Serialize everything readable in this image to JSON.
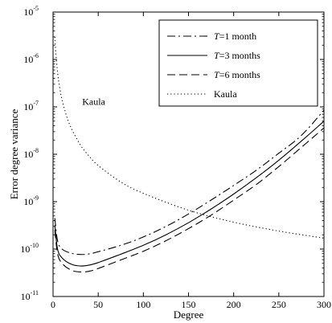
{
  "chart_data": {
    "type": "line",
    "xlabel": "Degree",
    "ylabel": "Error degree variance",
    "xlim": [
      0,
      300
    ],
    "ylim_exponent": [
      -11,
      -5
    ],
    "y_scale": "log",
    "x_ticks": [
      {
        "value": 0,
        "label": "0"
      },
      {
        "value": 50,
        "label": "50"
      },
      {
        "value": 100,
        "label": "100"
      },
      {
        "value": 150,
        "label": "150"
      },
      {
        "value": 200,
        "label": "200"
      },
      {
        "value": 250,
        "label": "250"
      },
      {
        "value": 300,
        "label": "300"
      }
    ],
    "y_ticks": [
      {
        "exp": -11,
        "base": "10",
        "sup": "-11"
      },
      {
        "exp": -10,
        "base": "10",
        "sup": "-10"
      },
      {
        "exp": -9,
        "base": "10",
        "sup": "-9"
      },
      {
        "exp": -8,
        "base": "10",
        "sup": "-8"
      },
      {
        "exp": -7,
        "base": "10",
        "sup": "-7"
      },
      {
        "exp": -6,
        "base": "10",
        "sup": "-6"
      },
      {
        "exp": -5,
        "base": "10",
        "sup": "-5"
      }
    ],
    "grid": false,
    "legend_position": "top-right",
    "annotations": [
      {
        "text": "Kaula",
        "x": 45,
        "y": 1.1e-07
      }
    ],
    "series": [
      {
        "id": "t1",
        "legend_var": "T",
        "legend_rest": "=1 month",
        "dash": "dashdot",
        "x": [
          2,
          5,
          10,
          20,
          30,
          40,
          50,
          75,
          100,
          125,
          150,
          175,
          200,
          225,
          250,
          275,
          300
        ],
        "y": [
          4.5e-10,
          1.5e-10,
          1e-10,
          8.2e-11,
          7.7e-11,
          7.9e-11,
          8.8e-11,
          1.2e-10,
          1.8e-10,
          3e-10,
          5.5e-10,
          1.08e-09,
          2.2e-09,
          4.6e-09,
          1.05e-08,
          2.5e-08,
          8.5e-08
        ]
      },
      {
        "id": "t3",
        "legend_var": "T",
        "legend_rest": "=3 months",
        "dash": "solid",
        "x": [
          2,
          5,
          10,
          20,
          30,
          40,
          50,
          75,
          100,
          125,
          150,
          175,
          200,
          225,
          250,
          275,
          300
        ],
        "y": [
          3.2e-10,
          1e-10,
          6.5e-11,
          4.8e-11,
          4.4e-11,
          4.6e-11,
          5.2e-11,
          7.8e-11,
          1.2e-10,
          2e-10,
          3.6e-10,
          7e-10,
          1.45e-09,
          3.2e-09,
          7.5e-09,
          1.9e-08,
          5e-08
        ]
      },
      {
        "id": "t6",
        "legend_var": "T",
        "legend_rest": "=6 months",
        "dash": "dashed",
        "x": [
          2,
          5,
          10,
          20,
          30,
          40,
          50,
          75,
          100,
          125,
          150,
          175,
          200,
          225,
          250,
          275,
          300
        ],
        "y": [
          2.5e-10,
          8e-11,
          5e-11,
          3.6e-11,
          3.3e-11,
          3.4e-11,
          3.9e-11,
          5.9e-11,
          9e-11,
          1.5e-10,
          2.7e-10,
          5.2e-10,
          1.08e-09,
          2.3e-09,
          5.5e-09,
          1.4e-08,
          3.6e-08
        ]
      },
      {
        "id": "kaula",
        "legend_var": "",
        "legend_rest": "Kaula",
        "dash": "dotted",
        "x": [
          2,
          3,
          5,
          7,
          10,
          15,
          20,
          30,
          40,
          50,
          75,
          100,
          150,
          200,
          250,
          300
        ],
        "y": [
          3e-06,
          1.4e-06,
          5.3e-07,
          2.8e-07,
          1.4e-07,
          6.4e-08,
          3.6e-08,
          1.6e-08,
          9.1e-09,
          5.8e-09,
          2.6e-09,
          1.5e-09,
          6.6e-10,
          3.7e-10,
          2.4e-10,
          1.7e-10
        ]
      }
    ]
  }
}
